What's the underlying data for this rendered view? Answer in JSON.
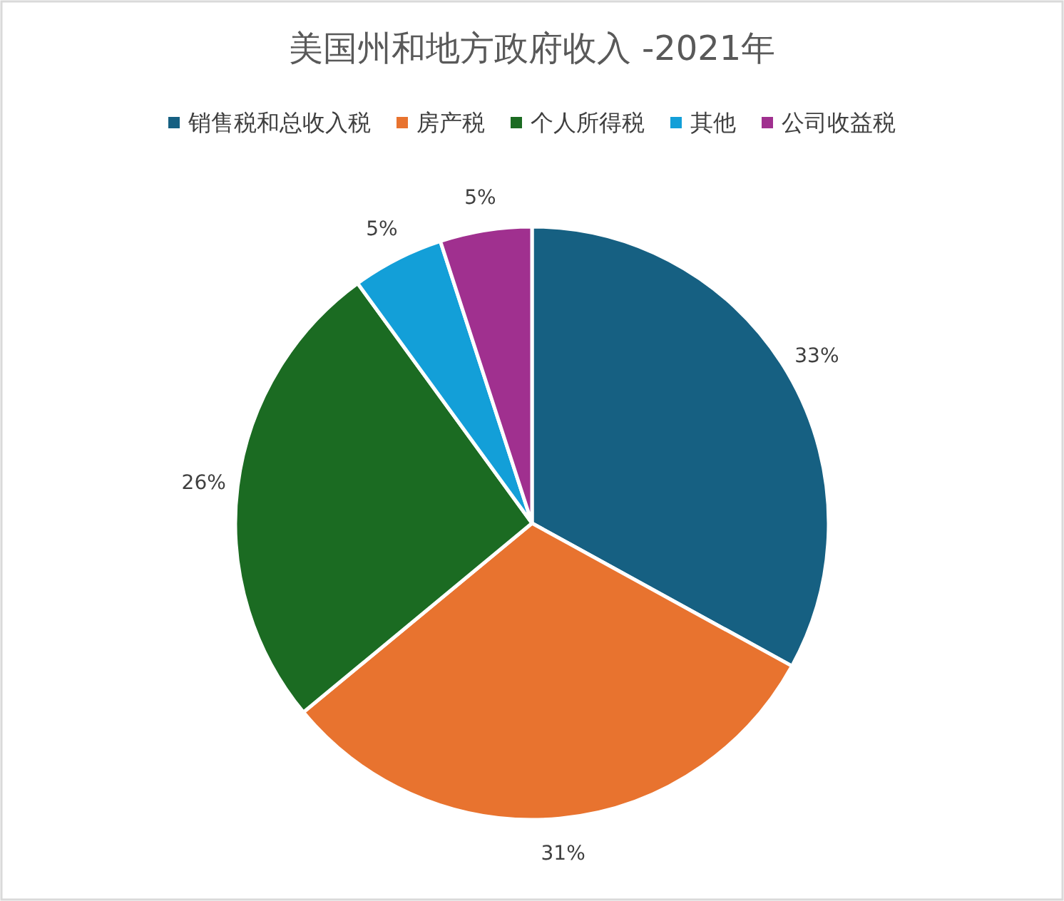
{
  "chart_data": {
    "type": "pie",
    "title": "美国州和地方政府收入 -2021年",
    "categories": [
      "销售税和总收入税",
      "房产税",
      "个人所得税",
      "其他",
      "公司收益税"
    ],
    "values": [
      33,
      31,
      26,
      5,
      5
    ],
    "colors": [
      "#166082",
      "#e8732f",
      "#1b6b22",
      "#139fd8",
      "#a0308f"
    ],
    "value_labels": [
      "33%",
      "31%",
      "26%",
      "5%",
      "5%"
    ],
    "legend": "top"
  }
}
